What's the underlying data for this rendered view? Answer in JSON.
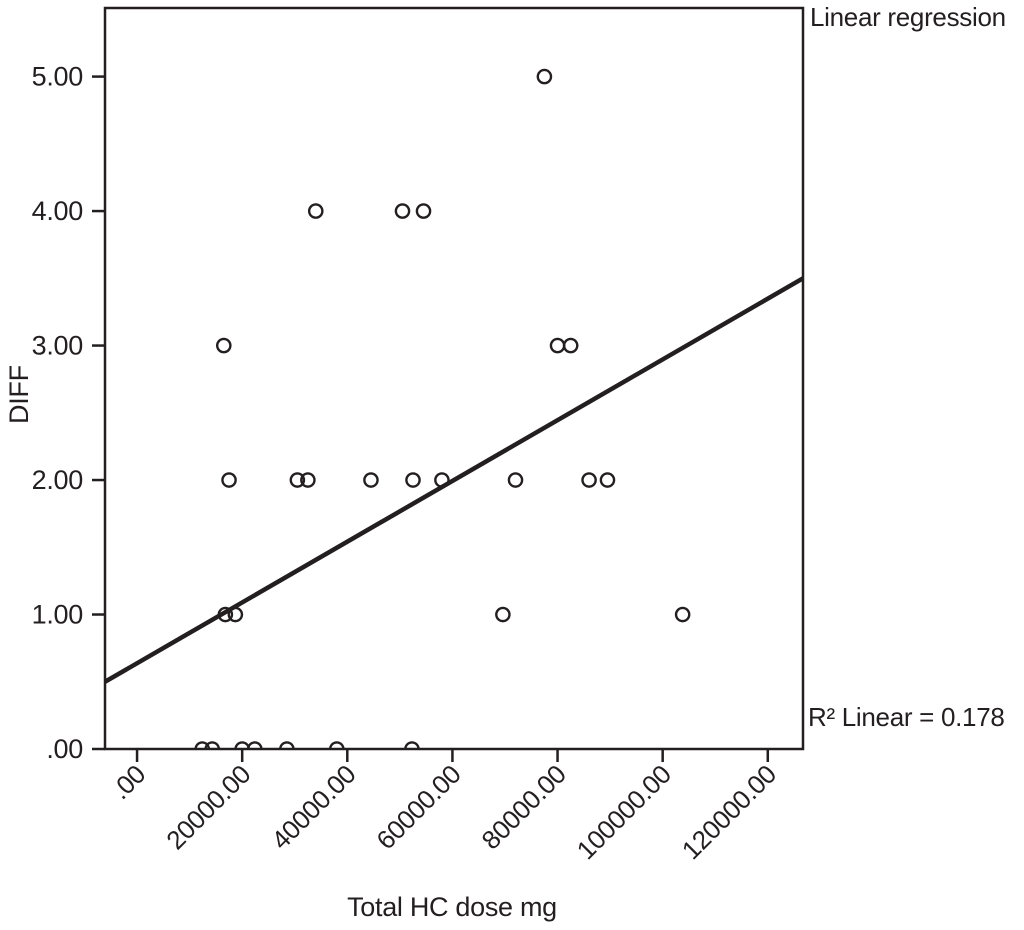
{
  "colors": {
    "ink": "#231f20",
    "background": "#ffffff"
  },
  "chart_data": {
    "type": "scatter",
    "title": "Linear regression",
    "xlabel": "Total HC dose mg",
    "ylabel": "DIFF",
    "grid": false,
    "legend": false,
    "marker": "open-circle",
    "xlim": [
      -6100,
      126700
    ],
    "ylim": [
      0,
      5.51
    ],
    "x_ticks": {
      "values": [
        0,
        20000,
        40000,
        60000,
        80000,
        100000,
        120000
      ],
      "labels": [
        ".00",
        "20000.00",
        "40000.00",
        "60000.00",
        "80000.00",
        "100000.00",
        "120000.00"
      ],
      "rotation": -45
    },
    "y_ticks": {
      "values": [
        0,
        1,
        2,
        3,
        4,
        5
      ],
      "labels": [
        ".00",
        "1.00",
        "2.00",
        "3.00",
        "4.00",
        "5.00"
      ]
    },
    "points": [
      [
        77500,
        5
      ],
      [
        34000,
        4
      ],
      [
        50500,
        4
      ],
      [
        54500,
        4
      ],
      [
        16500,
        3
      ],
      [
        80000,
        3
      ],
      [
        82500,
        3
      ],
      [
        17500,
        2
      ],
      [
        30500,
        2
      ],
      [
        32500,
        2
      ],
      [
        44500,
        2
      ],
      [
        52500,
        2
      ],
      [
        58000,
        2
      ],
      [
        72000,
        2
      ],
      [
        86000,
        2
      ],
      [
        89500,
        2
      ],
      [
        16800,
        1
      ],
      [
        18700,
        1
      ],
      [
        69600,
        1
      ],
      [
        103800,
        1
      ],
      [
        12400,
        0
      ],
      [
        14300,
        0
      ],
      [
        20000,
        0
      ],
      [
        22400,
        0
      ],
      [
        28500,
        0
      ],
      [
        38000,
        0
      ],
      [
        52300,
        0
      ]
    ],
    "regression_line": {
      "x1": -6100,
      "y1": 0.5,
      "x2": 126700,
      "y2": 3.5
    },
    "r2_label": "R² Linear = 0.178",
    "r2_value": 0.178
  }
}
